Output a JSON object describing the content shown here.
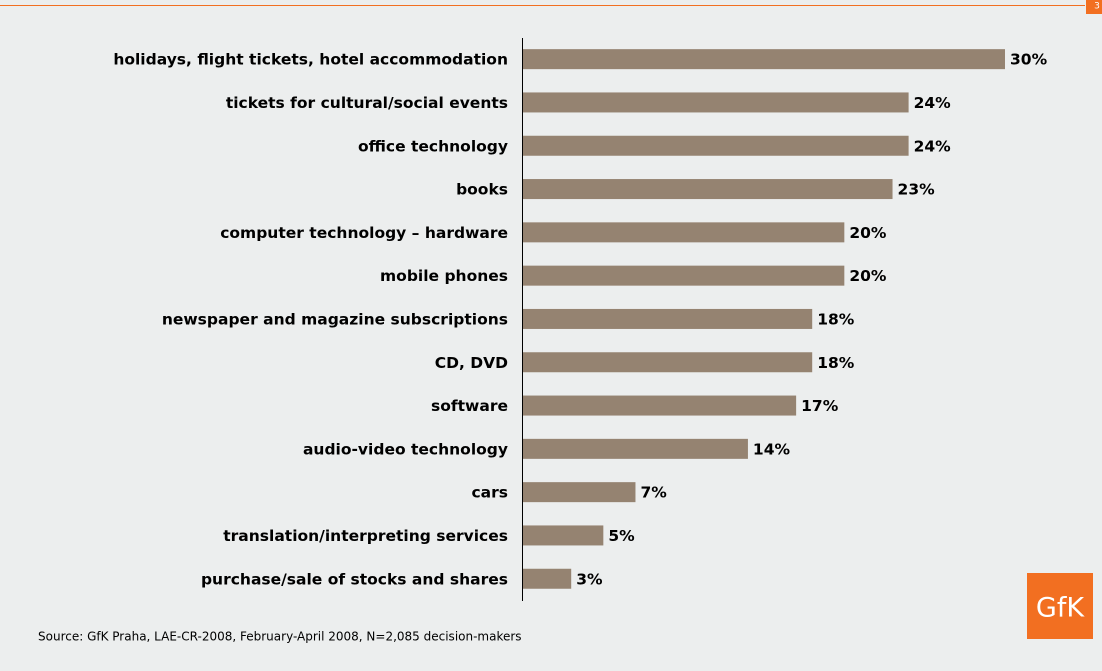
{
  "chart_data": {
    "type": "hbar",
    "page_number": "3",
    "categories": [
      "holidays, flight tickets, hotel accommodation",
      "tickets for cultural/social events",
      "office technology",
      "books",
      "computer technology – hardware",
      "mobile phones",
      "newspaper and magazine subscriptions",
      "CD, DVD",
      "software",
      "audio-video technology",
      "cars",
      "translation/interpreting services",
      "purchase/sale of stocks and shares"
    ],
    "values": [
      30,
      24,
      24,
      23,
      20,
      20,
      18,
      18,
      17,
      14,
      7,
      5,
      3
    ],
    "value_labels": [
      "30%",
      "24%",
      "24%",
      "23%",
      "20%",
      "20%",
      "18%",
      "18%",
      "17%",
      "14%",
      "7%",
      "5%",
      "3%"
    ],
    "color": "#958371",
    "xlim": [
      0,
      30
    ],
    "source": "Source: GfK Praha, LAE-CR-2008, February-April 2008, N=2,085 decision-makers",
    "logo": "GfK"
  }
}
